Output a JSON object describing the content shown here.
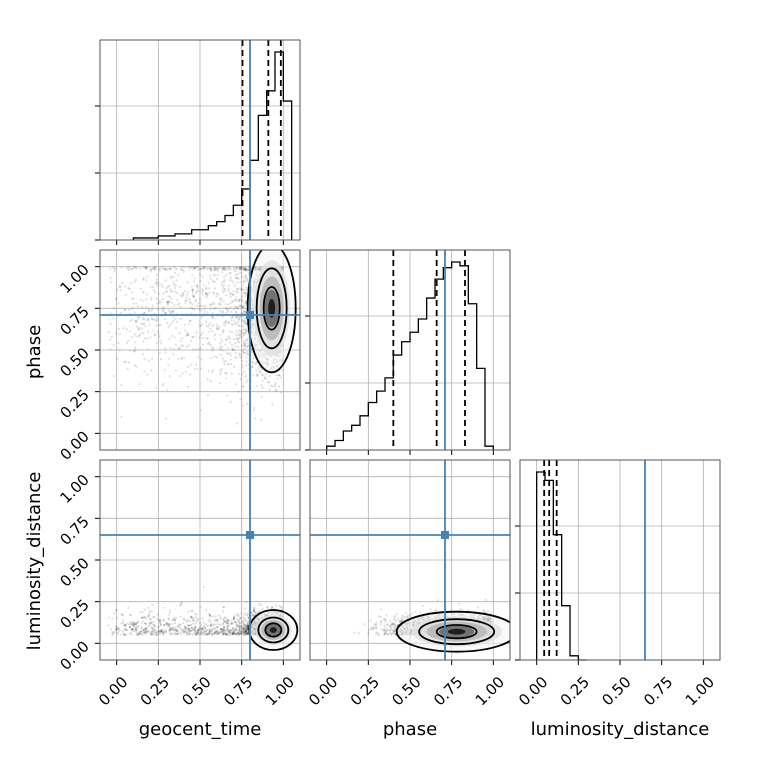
{
  "chart_data": {
    "type": "corner",
    "parameters": [
      "geocent_time",
      "phase",
      "luminosity_distance"
    ],
    "axis_range": [
      -0.1,
      1.1
    ],
    "tick_values": [
      0.0,
      0.25,
      0.5,
      0.75,
      1.0
    ],
    "tick_labels": [
      "0.00",
      "0.25",
      "0.50",
      "0.75",
      "1.00"
    ],
    "grid": true,
    "truth_color": "#4682b4",
    "contour_color": "#000000",
    "truths": {
      "geocent_time": 0.8,
      "phase": 0.71,
      "luminosity_distance": 0.65
    },
    "quantile_lines": {
      "geocent_time": [
        0.755,
        0.91,
        0.985
      ],
      "phase": [
        0.4,
        0.66,
        0.83
      ],
      "luminosity_distance": [
        0.045,
        0.075,
        0.12
      ]
    },
    "histograms": {
      "geocent_time": {
        "bins": [
          0.1,
          0.15,
          0.2,
          0.25,
          0.3,
          0.35,
          0.4,
          0.45,
          0.5,
          0.55,
          0.6,
          0.65,
          0.7,
          0.75,
          0.8,
          0.85,
          0.9,
          0.95,
          1.0,
          1.05
        ],
        "counts": [
          0.01,
          0.01,
          0.01,
          0.02,
          0.02,
          0.03,
          0.03,
          0.05,
          0.05,
          0.07,
          0.09,
          0.12,
          0.17,
          0.25,
          0.39,
          0.61,
          0.73,
          0.92,
          0.68
        ]
      },
      "phase": {
        "bins": [
          0.0,
          0.05,
          0.1,
          0.15,
          0.2,
          0.25,
          0.3,
          0.35,
          0.4,
          0.45,
          0.5,
          0.55,
          0.6,
          0.65,
          0.7,
          0.75,
          0.8,
          0.85,
          0.9,
          0.95,
          1.0
        ],
        "counts": [
          0.02,
          0.05,
          0.1,
          0.13,
          0.18,
          0.25,
          0.31,
          0.38,
          0.5,
          0.57,
          0.62,
          0.69,
          0.8,
          0.9,
          0.96,
          0.99,
          0.97,
          0.77,
          0.43,
          0.02
        ]
      },
      "luminosity_distance": {
        "bins": [
          0.0,
          0.05,
          0.1,
          0.15,
          0.2,
          0.25,
          0.3
        ],
        "counts": [
          0.9,
          0.86,
          0.6,
          0.26,
          0.02,
          0.0
        ]
      }
    },
    "scatter_panels": [
      {
        "x": "geocent_time",
        "y": "phase",
        "density": {
          "x_center": 0.93,
          "y_center": 0.75,
          "x_spread": 0.06,
          "y_spread": 0.16
        }
      },
      {
        "x": "geocent_time",
        "y": "luminosity_distance",
        "density": {
          "x_center": 0.94,
          "y_center": 0.08,
          "x_spread": 0.06,
          "y_spread": 0.05
        }
      },
      {
        "x": "phase",
        "y": "luminosity_distance",
        "density": {
          "x_center": 0.78,
          "y_center": 0.07,
          "x_spread": 0.15,
          "y_spread": 0.05
        }
      }
    ]
  }
}
